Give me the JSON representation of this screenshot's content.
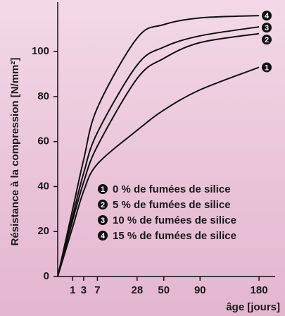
{
  "chart_data": {
    "type": "line",
    "ylabel": "Résistance à la compression [N/mm²]",
    "xlabel": "âge [jours]",
    "x": [
      0,
      1,
      3,
      7,
      28,
      50,
      90,
      180
    ],
    "xscale": "sqrt",
    "xlim": [
      0,
      210
    ],
    "xticks": [
      1,
      3,
      7,
      28,
      50,
      90,
      180
    ],
    "ylim": [
      0,
      122
    ],
    "yticks": [
      0,
      20,
      40,
      60,
      80,
      100
    ],
    "legend": "lower right",
    "series": [
      {
        "name": "0 % de fumées de silice",
        "marker": "1",
        "color": "#111111",
        "values": [
          0,
          22,
          38,
          50,
          65,
          74,
          83,
          93
        ]
      },
      {
        "name": "5 % de fumées de silice",
        "marker": "2",
        "color": "#111111",
        "values": [
          0,
          25,
          42,
          58,
          88,
          97,
          104,
          108
        ]
      },
      {
        "name": "10 % de fumées de silice",
        "marker": "3",
        "color": "#111111",
        "values": [
          0,
          27,
          46,
          64,
          94,
          102,
          107,
          111
        ]
      },
      {
        "name": "15 % de fumées de silice",
        "marker": "4",
        "color": "#111111",
        "values": [
          0,
          30,
          52,
          75,
          106,
          112,
          115,
          116
        ]
      }
    ]
  }
}
